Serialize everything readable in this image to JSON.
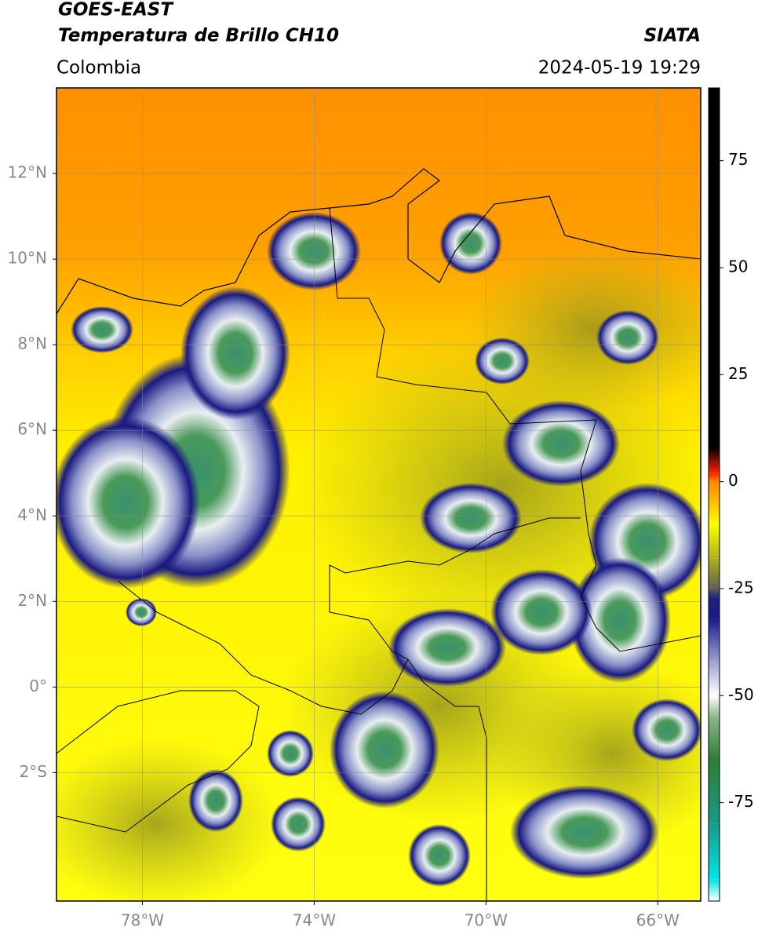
{
  "chart_data": {
    "type": "map",
    "title": "GOES-EAST",
    "subtitle": "Temperatura de Brillo CH10",
    "source": "SIATA",
    "region": "Colombia",
    "datetime": "2024-05-19 19:29",
    "xlim": [
      -80,
      -65
    ],
    "ylim": [
      -5,
      14
    ],
    "xticks": [
      {
        "value": -78,
        "label": "78°W"
      },
      {
        "value": -74,
        "label": "74°W"
      },
      {
        "value": -70,
        "label": "70°W"
      },
      {
        "value": -66,
        "label": "66°W"
      }
    ],
    "yticks": [
      {
        "value": -2,
        "label": "2°S"
      },
      {
        "value": 0,
        "label": "0°"
      },
      {
        "value": 2,
        "label": "2°N"
      },
      {
        "value": 4,
        "label": "4°N"
      },
      {
        "value": 6,
        "label": "6°N"
      },
      {
        "value": 8,
        "label": "8°N"
      },
      {
        "value": 10,
        "label": "10°N"
      },
      {
        "value": 12,
        "label": "12°N"
      }
    ],
    "grid": true,
    "colorbar": {
      "lim": [
        -98,
        92
      ],
      "ticks": [
        -75,
        -50,
        -25,
        0,
        25,
        50,
        75
      ],
      "colormap": [
        {
          "value": -98,
          "color": "#ffffff"
        },
        {
          "value": -93,
          "color": "#00e5e5"
        },
        {
          "value": -80,
          "color": "#1a9a8a"
        },
        {
          "value": -65,
          "color": "#2e7d32"
        },
        {
          "value": -55,
          "color": "#8ab88a"
        },
        {
          "value": -50,
          "color": "#ffffff"
        },
        {
          "value": -42,
          "color": "#9aa0d0"
        },
        {
          "value": -32,
          "color": "#1a1a8c"
        },
        {
          "value": -27,
          "color": "#202080"
        },
        {
          "value": -25,
          "color": "#606050"
        },
        {
          "value": -18,
          "color": "#b0b020"
        },
        {
          "value": -10,
          "color": "#ffff00"
        },
        {
          "value": -5,
          "color": "#ffc000"
        },
        {
          "value": 0,
          "color": "#ff8800"
        },
        {
          "value": 2,
          "color": "#ff2000"
        },
        {
          "value": 8,
          "color": "#000000"
        }
      ]
    }
  }
}
